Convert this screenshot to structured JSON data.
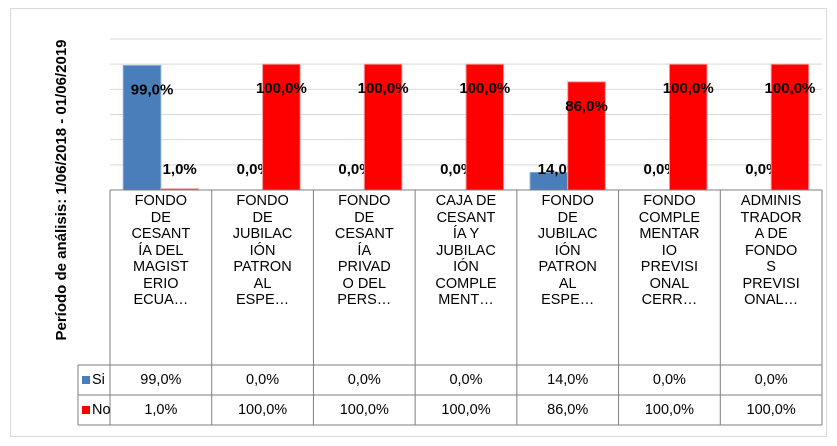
{
  "chart_data": {
    "type": "bar",
    "y_label": "Período de análisis: 1/06/2018 - 01/06/2019",
    "categories": [
      "FONDO\nDE\nCESANT\nÍA DEL\nMAGIST\nERIO\nECUA…",
      "FONDO\nDE\nJUBILAC\nIÓN\nPATRON\nAL\nESPE…",
      "FONDO\nDE\nCESANT\nÍA\nPRIVAD\nO DEL\nPERS…",
      "CAJA DE\nCESANT\nÍA Y\nJUBILAC\nIÓN\nCOMPLE\nMENT…",
      "FONDO\nDE\nJUBILAC\nIÓN\nPATRON\nAL\nESPE…",
      "FONDO\nCOMPLE\nMENTAR\nIO\nPREVISI\nONAL\nCERR…",
      "ADMINIS\nTRADOR\nA DE\nFONDO\nS\nPREVISI\nONAL…"
    ],
    "series": [
      {
        "name": "Si",
        "color": "#4a7ebb",
        "values": [
          99,
          0,
          0,
          0,
          14,
          0,
          0
        ],
        "value_labels": [
          "99,0%",
          "0,0%",
          "0,0%",
          "0,0%",
          "14,0%",
          "0,0%",
          "0,0%"
        ]
      },
      {
        "name": "No",
        "color": "#ff0000",
        "values": [
          1,
          100,
          100,
          100,
          86,
          100,
          100
        ],
        "value_labels": [
          "1,0%",
          "100,0%",
          "100,0%",
          "100,0%",
          "86,0%",
          "100,0%",
          "100,0%"
        ]
      }
    ],
    "ylim": [
      0,
      120
    ],
    "yticks": [
      0,
      20,
      40,
      60,
      80,
      100,
      120
    ],
    "ytick_labels": false,
    "grid": true,
    "data_table": true
  }
}
